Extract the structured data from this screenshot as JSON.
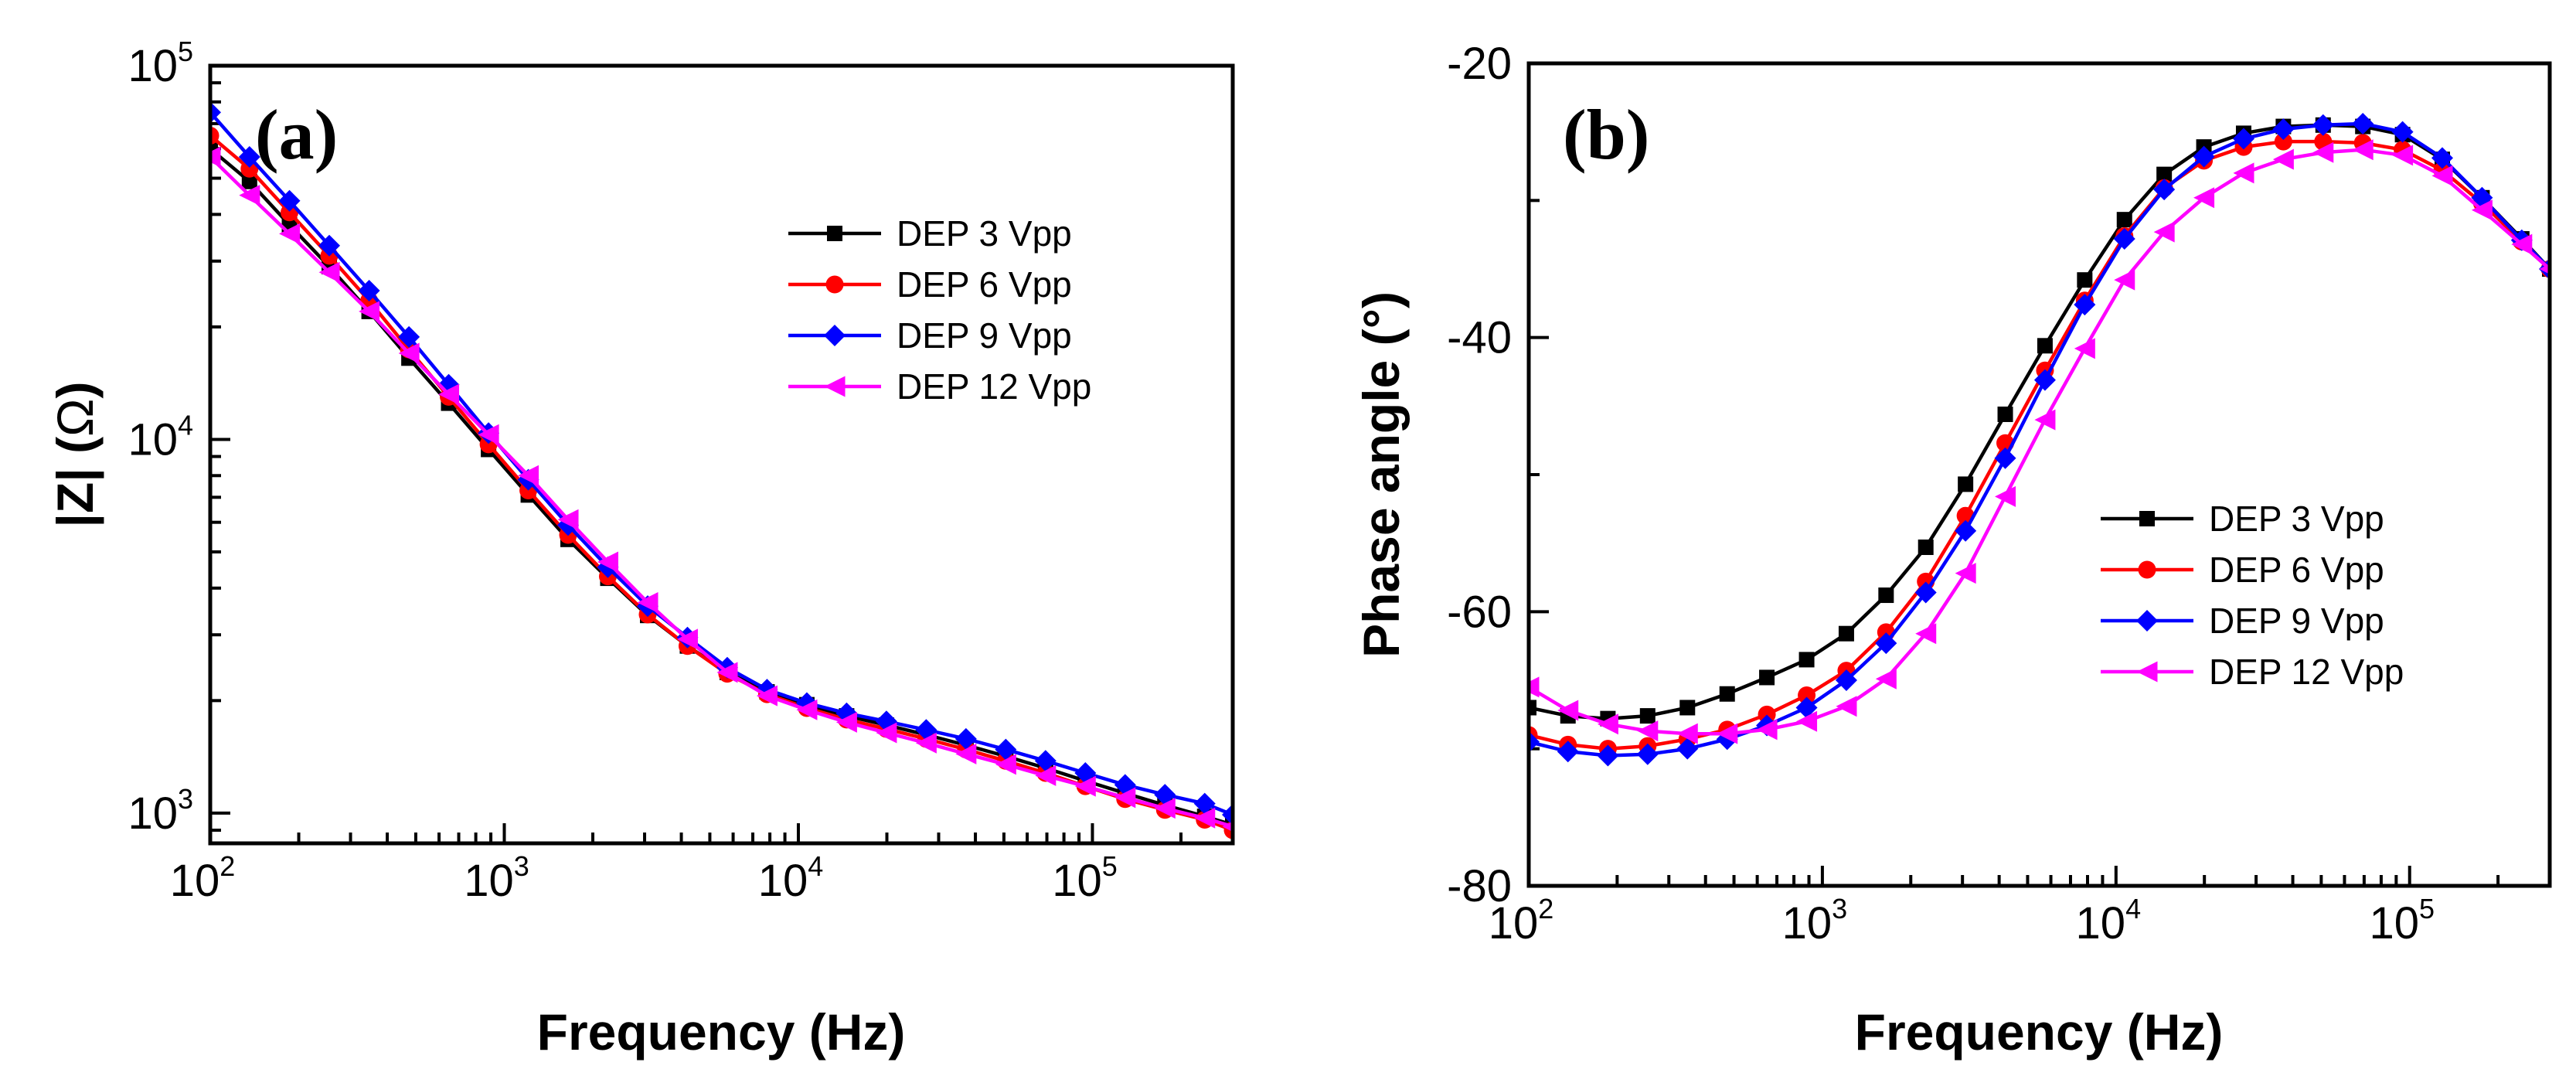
{
  "chart_data": [
    {
      "type": "line",
      "panel_label": "(a)",
      "xlabel": "Frequency (Hz)",
      "ylabel_main": "|Z| (",
      "ylabel_symbol": "Ω",
      "ylabel_end": ")",
      "xscale": "log",
      "yscale": "log",
      "xlim": [
        100,
        300000
      ],
      "ylim": [
        830,
        100000
      ],
      "x_tick_labels": [
        {
          "base": "10",
          "exp": "2"
        },
        {
          "base": "10",
          "exp": "3"
        },
        {
          "base": "10",
          "exp": "4"
        },
        {
          "base": "10",
          "exp": "5"
        }
      ],
      "y_tick_labels": [
        {
          "base": "10",
          "exp": "3"
        },
        {
          "base": "10",
          "exp": "4"
        },
        {
          "base": "10",
          "exp": "5"
        }
      ],
      "legend_position": "top-right",
      "x": [
        100,
        136,
        186,
        254,
        347,
        474,
        647,
        884,
        1207,
        1648,
        2250,
        3073,
        4196,
        5730,
        7825,
        10685,
        14591,
        19925,
        27209,
        37155,
        50737,
        69284,
        94612,
        129198,
        176425,
        240919,
        300000
      ],
      "series": [
        {
          "name": "DEP 3 Vpp",
          "color": "#000000",
          "marker": "square",
          "values": [
            60000,
            49000,
            37500,
            29000,
            22000,
            16500,
            12500,
            9400,
            7100,
            5400,
            4250,
            3380,
            2800,
            2380,
            2110,
            1950,
            1820,
            1720,
            1620,
            1520,
            1420,
            1320,
            1220,
            1130,
            1050,
            980,
            930
          ]
        },
        {
          "name": "DEP 6 Vpp",
          "color": "#ff0000",
          "marker": "circle",
          "values": [
            65000,
            53000,
            40500,
            31000,
            23500,
            17400,
            13000,
            9700,
            7300,
            5550,
            4300,
            3400,
            2800,
            2360,
            2080,
            1910,
            1780,
            1680,
            1580,
            1480,
            1380,
            1280,
            1180,
            1090,
            1020,
            960,
            900
          ]
        },
        {
          "name": "DEP 9 Vpp",
          "color": "#0000ff",
          "marker": "diamond",
          "values": [
            75000,
            57000,
            43500,
            33000,
            25000,
            18800,
            14000,
            10400,
            7800,
            5900,
            4550,
            3580,
            2950,
            2450,
            2140,
            1970,
            1850,
            1760,
            1670,
            1580,
            1480,
            1380,
            1280,
            1190,
            1120,
            1060,
            990
          ]
        },
        {
          "name": "DEP 12 Vpp",
          "color": "#ff00ff",
          "marker": "triangle-left",
          "values": [
            57000,
            45000,
            35500,
            28000,
            22000,
            17000,
            13200,
            10300,
            8000,
            6100,
            4700,
            3660,
            2920,
            2380,
            2060,
            1890,
            1750,
            1640,
            1540,
            1440,
            1350,
            1260,
            1180,
            1100,
            1030,
            970,
            920
          ]
        }
      ]
    },
    {
      "type": "line",
      "panel_label": "(b)",
      "xlabel": "Frequency (Hz)",
      "ylabel": "Phase angle (°)",
      "xscale": "log",
      "yscale": "linear",
      "xlim": [
        100,
        300000
      ],
      "ylim": [
        -80,
        -20
      ],
      "x_tick_labels": [
        {
          "base": "10",
          "exp": "2"
        },
        {
          "base": "10",
          "exp": "3"
        },
        {
          "base": "10",
          "exp": "4"
        },
        {
          "base": "10",
          "exp": "5"
        }
      ],
      "y_ticks": [
        -80,
        -60,
        -40,
        -20
      ],
      "y_tick_labels": [
        "-80",
        "-60",
        "-40",
        "-20"
      ],
      "legend_position": "center-right",
      "x": [
        100,
        136,
        186,
        254,
        347,
        474,
        647,
        884,
        1207,
        1648,
        2250,
        3073,
        4196,
        5730,
        7825,
        10685,
        14591,
        19925,
        27209,
        37155,
        50737,
        69284,
        94612,
        129198,
        176425,
        240919,
        300000
      ],
      "series": [
        {
          "name": "DEP 3 Vpp",
          "color": "#000000",
          "marker": "square",
          "values": [
            -67,
            -67.6,
            -67.8,
            -67.6,
            -67,
            -66,
            -64.8,
            -63.5,
            -61.6,
            -58.8,
            -55.3,
            -50.7,
            -45.6,
            -40.6,
            -35.8,
            -31.4,
            -28.1,
            -26.1,
            -25.1,
            -24.6,
            -24.5,
            -24.6,
            -25.2,
            -27,
            -29.8,
            -32.8,
            -35
          ]
        },
        {
          "name": "DEP 6 Vpp",
          "color": "#ff0000",
          "marker": "circle",
          "values": [
            -69,
            -69.7,
            -70,
            -69.8,
            -69.3,
            -68.6,
            -67.5,
            -66.1,
            -64.3,
            -61.5,
            -57.8,
            -53,
            -47.7,
            -42.4,
            -37.3,
            -32.6,
            -29.1,
            -27.1,
            -26.1,
            -25.7,
            -25.7,
            -25.8,
            -26.3,
            -27.8,
            -30.2,
            -33,
            -35
          ]
        },
        {
          "name": "DEP 9 Vpp",
          "color": "#0000ff",
          "marker": "diamond",
          "values": [
            -69.5,
            -70.2,
            -70.5,
            -70.4,
            -70,
            -69.3,
            -68.3,
            -67,
            -65,
            -62.3,
            -58.6,
            -54.1,
            -48.8,
            -43.1,
            -37.6,
            -32.8,
            -29.2,
            -26.8,
            -25.5,
            -24.8,
            -24.5,
            -24.4,
            -25,
            -26.9,
            -29.8,
            -32.9,
            -35
          ]
        },
        {
          "name": "DEP 12 Vpp",
          "color": "#ff00ff",
          "marker": "triangle-left",
          "values": [
            -65.5,
            -67.2,
            -68.2,
            -68.7,
            -68.9,
            -68.9,
            -68.6,
            -68,
            -66.9,
            -64.9,
            -61.6,
            -57.2,
            -51.6,
            -46,
            -40.8,
            -35.8,
            -32.3,
            -29.8,
            -28,
            -27,
            -26.5,
            -26.3,
            -26.7,
            -28.2,
            -30.7,
            -33.2,
            -35
          ]
        }
      ]
    }
  ]
}
